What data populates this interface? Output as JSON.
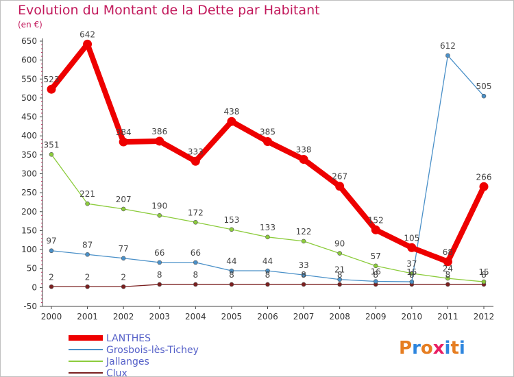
{
  "header": {
    "title": "Evolution du Montant de la Dette par Habitant",
    "subtitle": "(en €)"
  },
  "logo": {
    "text": "Proxiti",
    "letter_colors": [
      "#e67e22",
      "#2e86de",
      "#e67e22",
      "#e91e63",
      "#2e86de",
      "#e67e22",
      "#2e86de"
    ]
  },
  "chart_data": {
    "type": "line",
    "title": "Evolution du Montant de la Dette par Habitant",
    "subtitle": "(en €)",
    "xlabel": "",
    "ylabel": "",
    "x": [
      "2000",
      "2001",
      "2002",
      "2003",
      "2004",
      "2005",
      "2006",
      "2007",
      "2008",
      "2009",
      "2010",
      "2011",
      "2012"
    ],
    "ylim": [
      -50,
      650
    ],
    "yticks": [
      -50,
      0,
      50,
      100,
      150,
      200,
      250,
      300,
      350,
      400,
      450,
      500,
      550,
      600,
      650
    ],
    "grid": false,
    "legend_position": "bottom-left",
    "series": [
      {
        "name": "LANTHES",
        "color": "#ee0000",
        "width": "thick",
        "values": [
          523,
          642,
          384,
          386,
          333,
          438,
          385,
          338,
          267,
          152,
          105,
          68,
          266
        ]
      },
      {
        "name": "Grosbois-lès-Tichey",
        "color": "#4a90c8",
        "width": "thin",
        "values": [
          97,
          87,
          77,
          66,
          66,
          44,
          44,
          33,
          21,
          16,
          15,
          612,
          505
        ]
      },
      {
        "name": "Jallanges",
        "color": "#8ccc3c",
        "width": "thin",
        "values": [
          351,
          221,
          207,
          190,
          172,
          153,
          133,
          122,
          90,
          57,
          37,
          24,
          15
        ]
      },
      {
        "name": "Clux",
        "color": "#7a1f1f",
        "width": "thin",
        "values": [
          2,
          2,
          2,
          8,
          8,
          8,
          8,
          8,
          8,
          8,
          8,
          8,
          8
        ]
      }
    ]
  }
}
